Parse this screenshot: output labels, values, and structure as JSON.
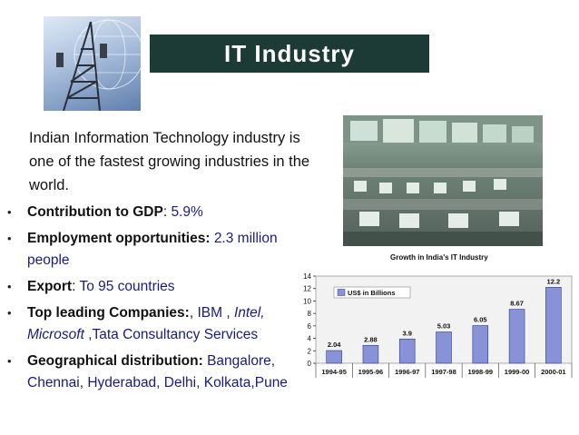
{
  "title": "IT Industry",
  "intro": "Indian Information Technology industry is one of the fastest growing industries in the world.",
  "bullets": [
    {
      "label": "Contribution to GDP",
      "sep": ": ",
      "value": "5.9%"
    },
    {
      "label": "Employment opportunities:",
      "sep": " ",
      "value": "2.3 million people"
    },
    {
      "label": "Export",
      "sep": ": ",
      "value": "To 95 countries"
    },
    {
      "label": "Top leading Companies:",
      "sep": ", ",
      "value_a": "IBM , ",
      "value_italic": "Intel, Microsoft",
      "value_b": " ,Tata Consultancy Services"
    },
    {
      "label": "Geographical distribution:",
      "sep": " ",
      "value": "Bangalore, Chennai, Hyderabad, Delhi, Kolkata,Pune"
    }
  ],
  "colors": {
    "title_bar": "#1d3b36",
    "value_text": "#1a1a80",
    "bar_fill": "#8892d6"
  },
  "images": {
    "tower": "telecom-tower-photo",
    "photo": "it-office-control-room-photo"
  },
  "chart_data": {
    "type": "bar",
    "title": "Growth in India's IT Industry",
    "legend": "US$ in Billions",
    "legend_position": "top-left",
    "categories": [
      "1994-95",
      "1995-96",
      "1996-97",
      "1997-98",
      "1998-99",
      "1999-00",
      "2000-01"
    ],
    "values": [
      2.04,
      2.88,
      3.9,
      5.03,
      6.05,
      8.67,
      12.2
    ],
    "value_labels": [
      "2.04",
      "2.88",
      "3.9",
      "5.03",
      "6.05",
      "8.67",
      "12.2"
    ],
    "ylim": [
      0,
      14
    ],
    "yticks": [
      "0",
      "2",
      "4",
      "6",
      "8",
      "10",
      "12",
      "14"
    ],
    "grid": false
  }
}
